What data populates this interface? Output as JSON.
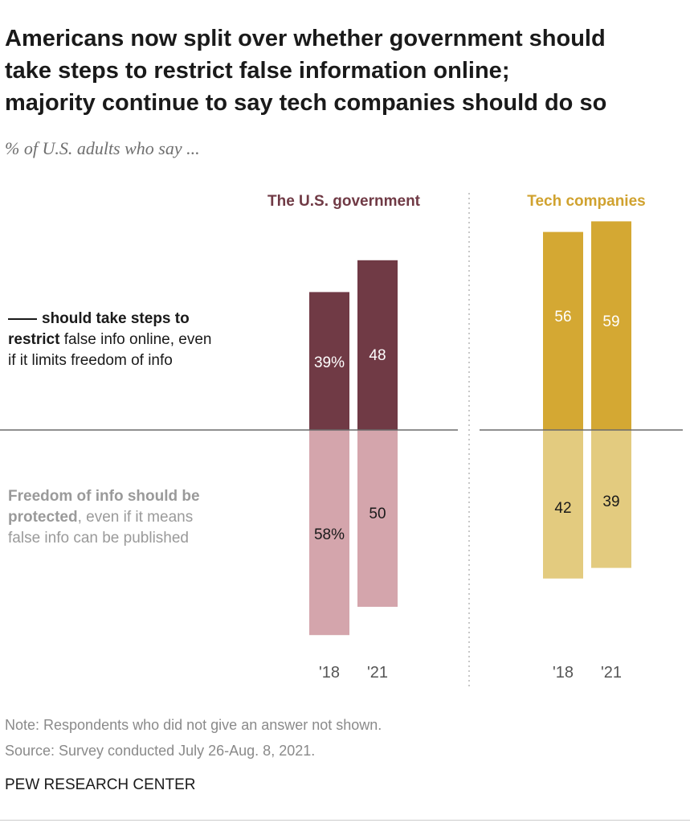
{
  "title_lines": [
    "Americans now split over whether government should",
    "take steps to restrict false information online;",
    "majority continue to say tech companies should do so"
  ],
  "subtitle": "% of U.S. adults who say ...",
  "labels": {
    "restrict_bold_a": "should take steps to",
    "restrict_bold_b": "restrict",
    "restrict_rest_a": " false info online, even",
    "restrict_rest_b": "if it limits freedom of info",
    "freedom_bold_a": "Freedom of info should be",
    "freedom_bold_b": "protected",
    "freedom_rest_a": ", even if it means",
    "freedom_rest_b": "false info can be published"
  },
  "notes": {
    "note": "Note: Respondents who did not give an answer not shown.",
    "source": "Source: Survey conducted July 26-Aug. 8, 2021.",
    "org": "PEW RESEARCH CENTER"
  },
  "chart_data": {
    "type": "bar",
    "layout": "diverging",
    "categories": [
      "'18",
      "'21"
    ],
    "panels": [
      {
        "name": "The U.S. government",
        "restrict": [
          39,
          48
        ],
        "protect": [
          58,
          50
        ],
        "restrict_labels": [
          "39%",
          "48"
        ],
        "protect_labels": [
          "58%",
          "50"
        ],
        "color_restrict": "#703a45",
        "color_protect": "#d4a5ac",
        "title_color": "#703a45"
      },
      {
        "name": "Tech companies",
        "restrict": [
          56,
          59
        ],
        "protect": [
          42,
          39
        ],
        "restrict_labels": [
          "56",
          "59"
        ],
        "protect_labels": [
          "42",
          "39"
        ],
        "color_restrict": "#d4a833",
        "color_protect": "#e3cb7f",
        "title_color": "#d0a22f"
      }
    ]
  }
}
